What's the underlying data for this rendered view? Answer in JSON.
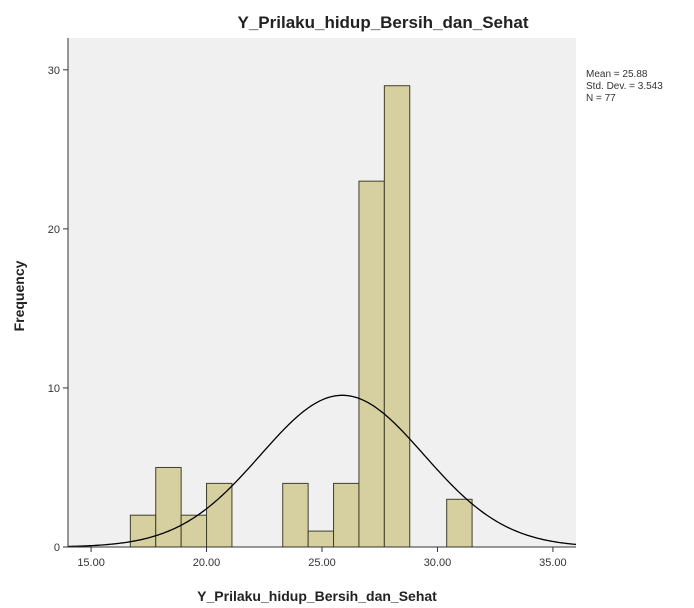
{
  "chart_data": {
    "type": "bar",
    "subtype": "histogram",
    "title": "Y_Prilaku_hidup_Bersih_dan_Sehat",
    "xlabel": "Y_Prilaku_hidup_Bersih_dan_Sehat",
    "ylabel": "Frequency",
    "xlim": [
      14,
      36
    ],
    "ylim": [
      0,
      32
    ],
    "x_ticks": [
      "15.00",
      "20.00",
      "25.00",
      "30.00",
      "35.00"
    ],
    "x_tick_values": [
      15,
      20,
      25,
      30,
      35
    ],
    "y_ticks": [
      "0",
      "10",
      "20",
      "30"
    ],
    "y_tick_values": [
      0,
      10,
      20,
      30
    ],
    "bin_width": 1.1,
    "bins": [
      {
        "start": 16.7,
        "end": 17.8,
        "value": 2
      },
      {
        "start": 17.8,
        "end": 18.9,
        "value": 5
      },
      {
        "start": 18.9,
        "end": 20.0,
        "value": 2
      },
      {
        "start": 20.0,
        "end": 21.1,
        "value": 4
      },
      {
        "start": 23.3,
        "end": 24.4,
        "value": 4
      },
      {
        "start": 24.4,
        "end": 25.5,
        "value": 1
      },
      {
        "start": 25.5,
        "end": 26.6,
        "value": 4
      },
      {
        "start": 26.6,
        "end": 27.7,
        "value": 23
      },
      {
        "start": 27.7,
        "end": 28.8,
        "value": 29
      },
      {
        "start": 30.4,
        "end": 31.5,
        "value": 3
      }
    ],
    "normal_curve": {
      "mean": 25.88,
      "std": 3.543,
      "n": 77,
      "scale_bin_width": 1.1
    },
    "stats_text": [
      "Mean = 25.88",
      "Std. Dev. = 3.543",
      "N = 77"
    ],
    "legend_position": "top-right",
    "grid": false,
    "colors": {
      "bar_fill": "#d6cf9f",
      "bar_stroke": "#3f3f2a",
      "plot_background": "#f0f0f0",
      "curve": "#000000",
      "axis": "#333333"
    }
  }
}
